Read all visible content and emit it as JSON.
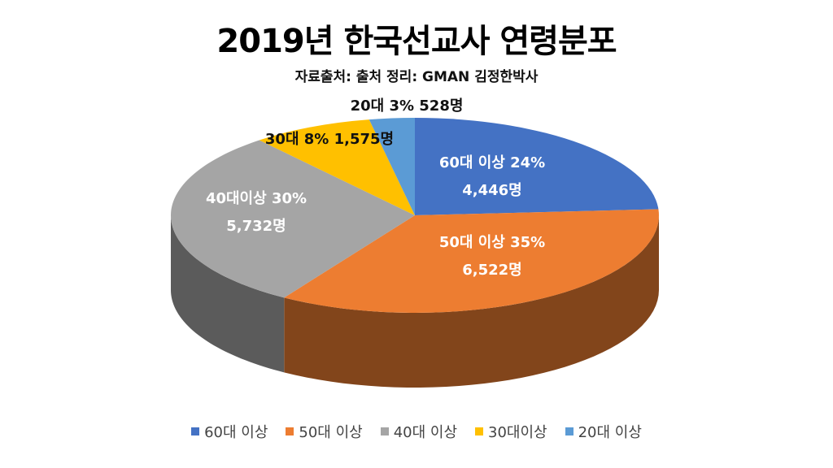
{
  "chart_data": {
    "type": "pie",
    "title": "2019년 한국선교사 연령분포",
    "subtitle": "자료출처: 출처  정리: GMAN 김정한박사",
    "series": [
      {
        "name": "60대 이상",
        "percent": 24,
        "count": 4446,
        "label1": "60대 이상 24%",
        "label2": "4,446명",
        "color": "#4472C4"
      },
      {
        "name": "50대 이상",
        "percent": 35,
        "count": 6522,
        "label1": "50대 이상 35%",
        "label2": "6,522명",
        "color": "#ED7D31"
      },
      {
        "name": "40대 이상",
        "legend": "40대 이상",
        "percent": 30,
        "count": 5732,
        "label1": "40대이상  30%",
        "label2": "5,732명",
        "color": "#A5A5A5"
      },
      {
        "name": "30대이상",
        "percent": 8,
        "count": 1575,
        "label1": "30대 8% 1,575명",
        "label2": "",
        "color": "#FFC000"
      },
      {
        "name": "20대 이상",
        "percent": 3,
        "count": 528,
        "label1": "20대  3%  528명",
        "label2": "",
        "color": "#5B9BD5"
      }
    ],
    "legend_position": "bottom"
  }
}
